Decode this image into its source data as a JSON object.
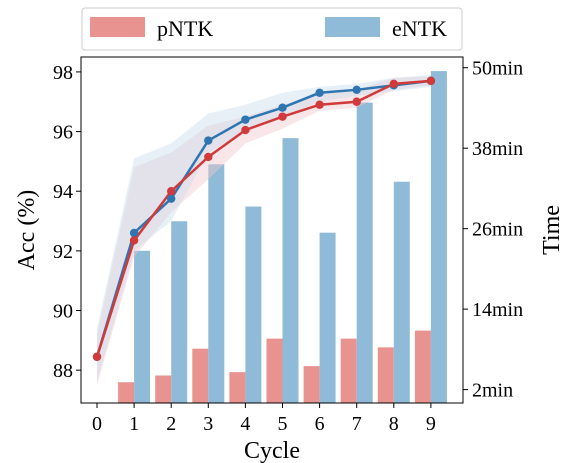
{
  "chart_data": {
    "type": "bar+line",
    "xlabel": "Cycle",
    "ylabel_left": "Acc (%)",
    "ylabel_right": "Time",
    "x_ticks": [
      0,
      1,
      2,
      3,
      4,
      5,
      6,
      7,
      8,
      9
    ],
    "ylim_left": [
      86.9,
      98.5
    ],
    "y_ticks_left": [
      88,
      90,
      92,
      94,
      96,
      98
    ],
    "ylim_right": [
      0,
      51.6
    ],
    "y_ticks_right": [
      2,
      14,
      26,
      38,
      50
    ],
    "y_tick_labels_right": [
      "2min",
      "14min",
      "26min",
      "38min",
      "50min"
    ],
    "legend": {
      "placement": "top",
      "entries": [
        "pNTK",
        "eNTK"
      ]
    },
    "colors": {
      "pNTK_bar": "#e99391",
      "eNTK_bar": "#8fbad8",
      "pNTK_line": "#d03a3a",
      "eNTK_line": "#2f76b1",
      "pNTK_band": "#f0c8cd",
      "eNTK_band": "#c9dced"
    },
    "bars": [
      {
        "name": "pNTK",
        "x": [
          1,
          2,
          3,
          4,
          5,
          6,
          7,
          8,
          9
        ],
        "values": [
          3.1,
          4.1,
          8.1,
          4.6,
          9.6,
          5.5,
          9.6,
          8.3,
          10.8
        ]
      },
      {
        "name": "eNTK",
        "x": [
          1,
          2,
          3,
          4,
          5,
          6,
          7,
          8,
          9
        ],
        "values": [
          22.7,
          27.1,
          35.6,
          29.3,
          39.5,
          25.4,
          44.8,
          33.0,
          49.5
        ]
      }
    ],
    "lines": [
      {
        "name": "pNTK",
        "x": [
          0,
          1,
          2,
          3,
          4,
          5,
          6,
          7,
          8,
          9
        ],
        "values": [
          88.45,
          92.35,
          94.0,
          95.15,
          96.05,
          96.5,
          96.9,
          97.0,
          97.6,
          97.7
        ],
        "band_low": [
          87.5,
          91.8,
          93.3,
          94.4,
          95.6,
          96.1,
          96.7,
          96.8,
          97.4,
          97.55
        ],
        "band_high": [
          89.2,
          94.8,
          95.3,
          96.2,
          96.5,
          96.9,
          97.3,
          97.4,
          97.8,
          97.85
        ]
      },
      {
        "name": "eNTK",
        "x": [
          0,
          1,
          2,
          3,
          4,
          5,
          6,
          7,
          8,
          9
        ],
        "values": [
          88.45,
          92.6,
          93.75,
          95.7,
          96.4,
          96.8,
          97.3,
          97.4,
          97.55,
          97.7
        ],
        "band_low": [
          87.6,
          92.0,
          93.0,
          95.3,
          96.0,
          96.5,
          97.0,
          97.2,
          97.35,
          97.5
        ],
        "band_high": [
          89.4,
          95.1,
          95.6,
          96.6,
          96.9,
          97.3,
          97.5,
          97.6,
          97.8,
          97.9
        ]
      }
    ]
  }
}
